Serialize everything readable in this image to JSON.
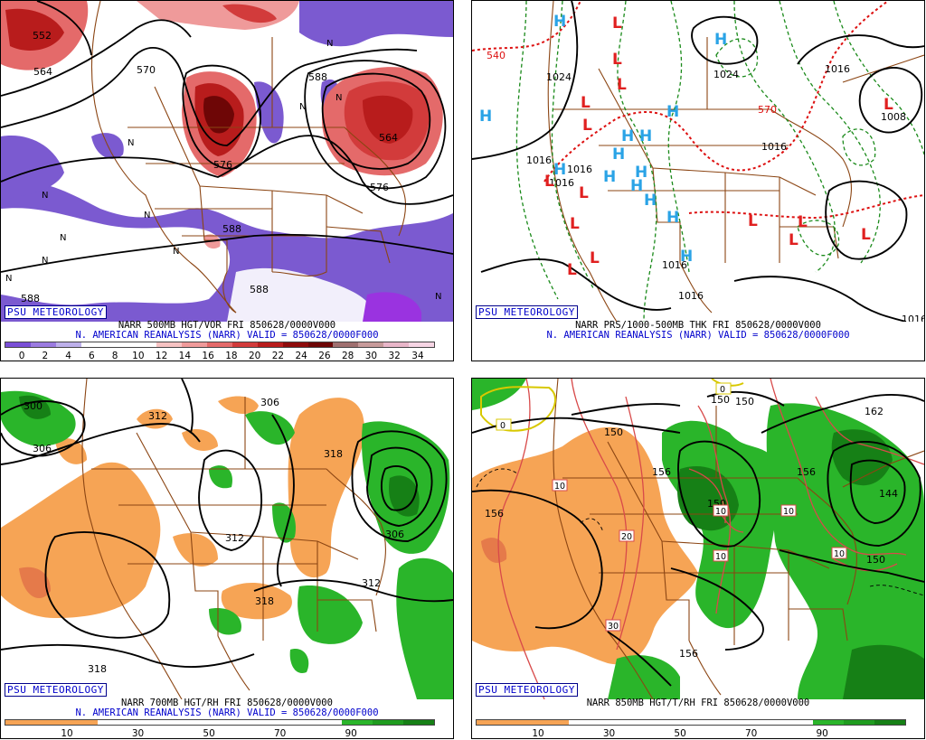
{
  "panels": [
    {
      "badge": "PSU METEOROLOGY",
      "title": "NARR 500MB HGT/VOR FRI 850628/0000V000",
      "subtitle": "N. AMERICAN REANALYSIS (NARR) VALID = 850628/0000F000",
      "colorbar": {
        "colors": [
          "#7a4fd6",
          "#9b7be0",
          "#bdb0ea",
          "#ffffff",
          "#ffffff",
          "#ffffff",
          "#f6c2c2",
          "#ef9a9a",
          "#e46a6a",
          "#d23b3b",
          "#b81c1c",
          "#8e0b0b",
          "#6e0606",
          "#a07070",
          "#c79a9a",
          "#e8b6c9",
          "#f6d5e4"
        ],
        "ticks": [
          "0",
          "2",
          "4",
          "6",
          "8",
          "10",
          "12",
          "14",
          "16",
          "18",
          "20",
          "22",
          "24",
          "26",
          "28",
          "30",
          "32",
          "34"
        ]
      },
      "contour_labels": [
        "552",
        "564",
        "570",
        "576",
        "588",
        "588",
        "588",
        "576",
        "564",
        "588",
        "576",
        "588"
      ]
    },
    {
      "badge": "PSU METEOROLOGY",
      "title": "NARR PRS/1000-500MB THK FRI 850628/0000V000",
      "subtitle": "N. AMERICAN REANALYSIS (NARR) VALID = 850628/0000F000",
      "contour_labels": [
        "540",
        "1016",
        "1016",
        "1016",
        "1024",
        "1024",
        "1008",
        "570",
        "1016",
        "1016",
        "1016",
        "1016",
        "1016"
      ]
    },
    {
      "badge": "PSU METEOROLOGY",
      "title": "NARR 700MB HGT/RH FRI 850628/0000V000",
      "subtitle": "N. AMERICAN REANALYSIS (NARR) VALID = 850628/0000F000",
      "colorbar": {
        "colors": [
          "#f6a455",
          "#f6a455",
          "#f6a455",
          "#ffffff",
          "#ffffff",
          "#ffffff",
          "#ffffff",
          "#ffffff",
          "#ffffff",
          "#ffffff",
          "#ffffff",
          "#2ab52a",
          "#1f9c1f",
          "#168016"
        ],
        "ticks": [
          "10",
          "30",
          "50",
          "70",
          "90"
        ]
      },
      "contour_labels": [
        "300",
        "306",
        "306",
        "312",
        "318",
        "312",
        "306",
        "312",
        "318",
        "318"
      ]
    },
    {
      "badge": "PSU METEOROLOGY",
      "title": "NARR 850MB HGT/T/RH FRI 850628/0000V000",
      "subtitle": "",
      "colorbar": {
        "colors": [
          "#f6a455",
          "#f6a455",
          "#f6a455",
          "#ffffff",
          "#ffffff",
          "#ffffff",
          "#ffffff",
          "#ffffff",
          "#ffffff",
          "#ffffff",
          "#ffffff",
          "#2ab52a",
          "#1f9c1f",
          "#168016"
        ],
        "ticks": [
          "10",
          "30",
          "50",
          "70",
          "90"
        ]
      },
      "contour_labels": [
        "150",
        "150",
        "156",
        "156",
        "150",
        "156",
        "144",
        "150",
        "156",
        "150",
        "162",
        "0",
        "0"
      ],
      "temp_labels": [
        "10",
        "10",
        "20",
        "10",
        "10",
        "10",
        "30"
      ]
    }
  ]
}
